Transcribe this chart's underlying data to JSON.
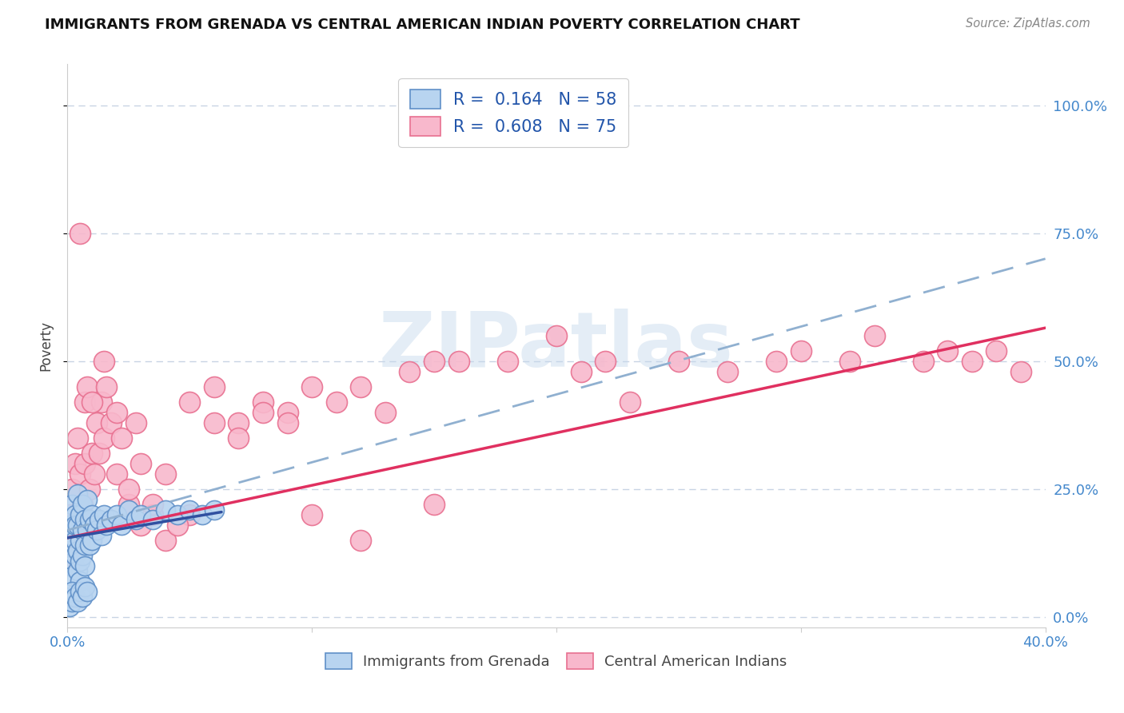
{
  "title": "IMMIGRANTS FROM GRENADA VS CENTRAL AMERICAN INDIAN POVERTY CORRELATION CHART",
  "source": "Source: ZipAtlas.com",
  "xlim": [
    0.0,
    0.4
  ],
  "ylim": [
    -0.02,
    1.08
  ],
  "ylabel": "Poverty",
  "xtick_positions": [
    0.0,
    0.1,
    0.2,
    0.3,
    0.4
  ],
  "xtick_labels": [
    "0.0%",
    "",
    "",
    "",
    "40.0%"
  ],
  "ytick_positions": [
    0.0,
    0.25,
    0.5,
    0.75,
    1.0
  ],
  "ytick_labels": [
    "0.0%",
    "25.0%",
    "50.0%",
    "75.0%",
    "100.0%"
  ],
  "legend_r_label1": "R =  0.164   N = 58",
  "legend_r_label2": "R =  0.608   N = 75",
  "legend_label1": "Immigrants from Grenada",
  "legend_label2": "Central American Indians",
  "watermark": "ZIPatlas",
  "blue_fill": "#b8d4f0",
  "blue_edge": "#6090c8",
  "pink_fill": "#f8b8cc",
  "pink_edge": "#e87090",
  "blue_line_color": "#3050a0",
  "pink_line_color": "#e03060",
  "dashed_line_color": "#90b0d0",
  "grid_color": "#c8d4e4",
  "title_color": "#111111",
  "tick_color": "#4488cc",
  "ylabel_color": "#444444",
  "source_color": "#888888",
  "legend_text_color": "#2255aa",
  "background": "#ffffff",
  "blue_scatter_x": [
    0.001,
    0.001,
    0.001,
    0.002,
    0.002,
    0.002,
    0.003,
    0.003,
    0.003,
    0.003,
    0.004,
    0.004,
    0.004,
    0.004,
    0.005,
    0.005,
    0.005,
    0.005,
    0.006,
    0.006,
    0.006,
    0.007,
    0.007,
    0.007,
    0.008,
    0.008,
    0.009,
    0.009,
    0.01,
    0.01,
    0.011,
    0.012,
    0.013,
    0.014,
    0.015,
    0.016,
    0.018,
    0.02,
    0.022,
    0.025,
    0.028,
    0.03,
    0.035,
    0.04,
    0.045,
    0.05,
    0.055,
    0.06,
    0.001,
    0.001,
    0.002,
    0.002,
    0.003,
    0.004,
    0.005,
    0.006,
    0.007,
    0.008
  ],
  "blue_scatter_y": [
    0.18,
    0.14,
    0.1,
    0.22,
    0.16,
    0.08,
    0.2,
    0.15,
    0.12,
    0.18,
    0.24,
    0.18,
    0.13,
    0.09,
    0.2,
    0.15,
    0.11,
    0.07,
    0.22,
    0.17,
    0.12,
    0.19,
    0.14,
    0.1,
    0.23,
    0.17,
    0.19,
    0.14,
    0.2,
    0.15,
    0.18,
    0.17,
    0.19,
    0.16,
    0.2,
    0.18,
    0.19,
    0.2,
    0.18,
    0.21,
    0.19,
    0.2,
    0.19,
    0.21,
    0.2,
    0.21,
    0.2,
    0.21,
    0.04,
    0.02,
    0.05,
    0.03,
    0.04,
    0.03,
    0.05,
    0.04,
    0.06,
    0.05
  ],
  "pink_scatter_x": [
    0.001,
    0.001,
    0.002,
    0.002,
    0.003,
    0.003,
    0.004,
    0.004,
    0.005,
    0.005,
    0.006,
    0.007,
    0.007,
    0.008,
    0.009,
    0.01,
    0.011,
    0.012,
    0.013,
    0.014,
    0.015,
    0.016,
    0.018,
    0.02,
    0.022,
    0.025,
    0.028,
    0.03,
    0.035,
    0.04,
    0.05,
    0.06,
    0.07,
    0.08,
    0.09,
    0.1,
    0.11,
    0.12,
    0.13,
    0.14,
    0.15,
    0.16,
    0.18,
    0.2,
    0.21,
    0.22,
    0.23,
    0.25,
    0.27,
    0.29,
    0.3,
    0.32,
    0.33,
    0.35,
    0.36,
    0.37,
    0.38,
    0.39,
    0.005,
    0.01,
    0.015,
    0.02,
    0.025,
    0.03,
    0.035,
    0.04,
    0.045,
    0.05,
    0.06,
    0.07,
    0.08,
    0.09,
    0.1,
    0.12,
    0.15
  ],
  "pink_scatter_y": [
    0.2,
    0.12,
    0.25,
    0.15,
    0.3,
    0.18,
    0.35,
    0.2,
    0.28,
    0.14,
    0.22,
    0.42,
    0.3,
    0.45,
    0.25,
    0.32,
    0.28,
    0.38,
    0.32,
    0.42,
    0.35,
    0.45,
    0.38,
    0.28,
    0.35,
    0.22,
    0.38,
    0.3,
    0.2,
    0.28,
    0.2,
    0.45,
    0.38,
    0.42,
    0.4,
    0.45,
    0.42,
    0.45,
    0.4,
    0.48,
    0.5,
    0.5,
    0.5,
    0.55,
    0.48,
    0.5,
    0.42,
    0.5,
    0.48,
    0.5,
    0.52,
    0.5,
    0.55,
    0.5,
    0.52,
    0.5,
    0.52,
    0.48,
    0.75,
    0.42,
    0.5,
    0.4,
    0.25,
    0.18,
    0.22,
    0.15,
    0.18,
    0.42,
    0.38,
    0.35,
    0.4,
    0.38,
    0.2,
    0.15,
    0.22
  ],
  "blue_line_x": [
    0.0,
    0.063
  ],
  "blue_line_y_intercept": 0.155,
  "blue_line_slope": 0.8,
  "pink_line_x0": 0.0,
  "pink_line_y0": 0.155,
  "pink_line_x1": 0.4,
  "pink_line_y1": 0.565,
  "dashed_line_x0": 0.0,
  "dashed_line_y0": 0.17,
  "dashed_line_x1": 0.4,
  "dashed_line_y1": 0.7
}
